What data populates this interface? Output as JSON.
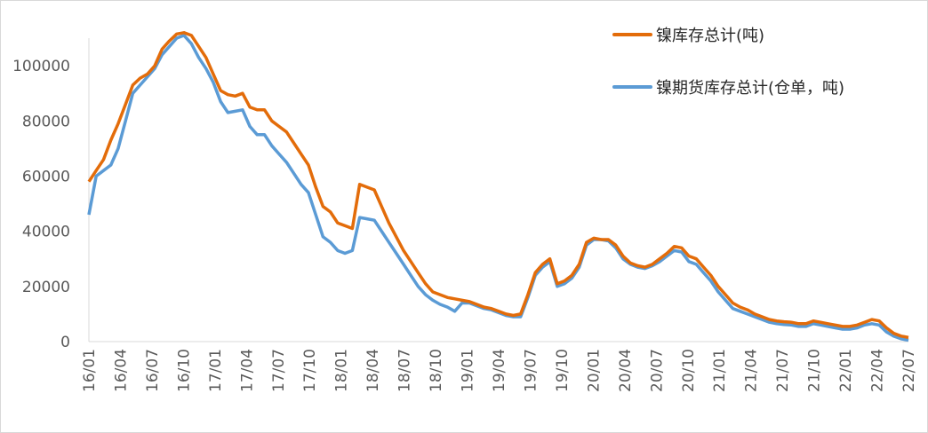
{
  "chart_data": {
    "type": "line",
    "title": "",
    "xlabel": "",
    "ylabel": "",
    "ylim": [
      0,
      110000
    ],
    "yticks": [
      0,
      20000,
      40000,
      60000,
      80000,
      100000
    ],
    "ytick_labels": [
      "0",
      "20000",
      "40000",
      "60000",
      "80000",
      "100000"
    ],
    "xtick_labels": [
      "16/01",
      "16/04",
      "16/07",
      "16/10",
      "17/01",
      "17/04",
      "17/07",
      "17/10",
      "18/01",
      "18/04",
      "18/07",
      "18/10",
      "19/01",
      "19/04",
      "19/07",
      "19/10",
      "20/01",
      "20/04",
      "20/07",
      "20/10",
      "21/01",
      "21/04",
      "21/07",
      "21/10",
      "22/01",
      "22/04",
      "22/07"
    ],
    "grid": false,
    "legend_position": "top-right",
    "series": [
      {
        "name": "镍库存总计(吨)",
        "color": "#E36C0A",
        "points": [
          [
            0,
            58000
          ],
          [
            1,
            62000
          ],
          [
            2,
            66000
          ],
          [
            3,
            73000
          ],
          [
            4,
            79000
          ],
          [
            5,
            86000
          ],
          [
            6,
            93000
          ],
          [
            7,
            95500
          ],
          [
            8,
            97000
          ],
          [
            9,
            100000
          ],
          [
            10,
            106000
          ],
          [
            11,
            109000
          ],
          [
            12,
            111500
          ],
          [
            13,
            112000
          ],
          [
            14,
            111000
          ],
          [
            15,
            107000
          ],
          [
            16,
            103000
          ],
          [
            17,
            97000
          ],
          [
            18,
            91000
          ],
          [
            19,
            89500
          ],
          [
            20,
            89000
          ],
          [
            21,
            90000
          ],
          [
            22,
            85000
          ],
          [
            23,
            84000
          ],
          [
            24,
            84000
          ],
          [
            25,
            80000
          ],
          [
            26,
            78000
          ],
          [
            27,
            76000
          ],
          [
            28,
            72000
          ],
          [
            29,
            68000
          ],
          [
            30,
            64000
          ],
          [
            31,
            56000
          ],
          [
            32,
            49000
          ],
          [
            33,
            47000
          ],
          [
            34,
            43000
          ],
          [
            35,
            42000
          ],
          [
            36,
            41000
          ],
          [
            37,
            57000
          ],
          [
            38,
            56000
          ],
          [
            39,
            55000
          ],
          [
            40,
            49000
          ],
          [
            41,
            43000
          ],
          [
            42,
            38000
          ],
          [
            43,
            33000
          ],
          [
            44,
            29000
          ],
          [
            45,
            25000
          ],
          [
            46,
            21000
          ],
          [
            47,
            18000
          ],
          [
            48,
            17000
          ],
          [
            49,
            16000
          ],
          [
            50,
            15500
          ],
          [
            51,
            15000
          ],
          [
            52,
            14500
          ],
          [
            53,
            13500
          ],
          [
            54,
            12500
          ],
          [
            55,
            12000
          ],
          [
            56,
            11000
          ],
          [
            57,
            10000
          ],
          [
            58,
            9500
          ],
          [
            59,
            10000
          ],
          [
            60,
            17000
          ],
          [
            61,
            25000
          ],
          [
            62,
            28000
          ],
          [
            63,
            30000
          ],
          [
            64,
            21000
          ],
          [
            65,
            22000
          ],
          [
            66,
            24000
          ],
          [
            67,
            28000
          ],
          [
            68,
            36000
          ],
          [
            69,
            37500
          ],
          [
            70,
            37000
          ],
          [
            71,
            37000
          ],
          [
            72,
            35000
          ],
          [
            73,
            31000
          ],
          [
            74,
            28500
          ],
          [
            75,
            27500
          ],
          [
            76,
            27000
          ],
          [
            77,
            28000
          ],
          [
            78,
            30000
          ],
          [
            79,
            32000
          ],
          [
            80,
            34500
          ],
          [
            81,
            34000
          ],
          [
            82,
            31000
          ],
          [
            83,
            30000
          ],
          [
            84,
            27000
          ],
          [
            85,
            24000
          ],
          [
            86,
            20000
          ],
          [
            87,
            17000
          ],
          [
            88,
            14000
          ],
          [
            89,
            12500
          ],
          [
            90,
            11500
          ],
          [
            91,
            10000
          ],
          [
            92,
            9000
          ],
          [
            93,
            8000
          ],
          [
            94,
            7500
          ],
          [
            95,
            7200
          ],
          [
            96,
            7000
          ],
          [
            97,
            6500
          ],
          [
            98,
            6500
          ],
          [
            99,
            7500
          ],
          [
            100,
            7000
          ],
          [
            101,
            6500
          ],
          [
            102,
            6000
          ],
          [
            103,
            5500
          ],
          [
            104,
            5500
          ],
          [
            105,
            6000
          ],
          [
            106,
            7000
          ],
          [
            107,
            8000
          ],
          [
            108,
            7500
          ],
          [
            109,
            5000
          ],
          [
            110,
            3000
          ],
          [
            111,
            2000
          ],
          [
            112,
            1500
          ]
        ]
      },
      {
        "name": "镍期货库存总计(仓单，吨)",
        "color": "#5B9BD5",
        "points": [
          [
            0,
            46000
          ],
          [
            1,
            60000
          ],
          [
            2,
            62000
          ],
          [
            3,
            64000
          ],
          [
            4,
            70000
          ],
          [
            5,
            80000
          ],
          [
            6,
            90000
          ],
          [
            7,
            93000
          ],
          [
            8,
            96000
          ],
          [
            9,
            99000
          ],
          [
            10,
            104000
          ],
          [
            11,
            107000
          ],
          [
            12,
            110000
          ],
          [
            13,
            111000
          ],
          [
            14,
            108000
          ],
          [
            15,
            103000
          ],
          [
            16,
            99000
          ],
          [
            17,
            94000
          ],
          [
            18,
            87000
          ],
          [
            19,
            83000
          ],
          [
            20,
            83500
          ],
          [
            21,
            84000
          ],
          [
            22,
            78000
          ],
          [
            23,
            75000
          ],
          [
            24,
            75000
          ],
          [
            25,
            71000
          ],
          [
            26,
            68000
          ],
          [
            27,
            65000
          ],
          [
            28,
            61000
          ],
          [
            29,
            57000
          ],
          [
            30,
            54000
          ],
          [
            31,
            46000
          ],
          [
            32,
            38000
          ],
          [
            33,
            36000
          ],
          [
            34,
            33000
          ],
          [
            35,
            32000
          ],
          [
            36,
            33000
          ],
          [
            37,
            45000
          ],
          [
            38,
            44500
          ],
          [
            39,
            44000
          ],
          [
            40,
            40000
          ],
          [
            41,
            36000
          ],
          [
            42,
            32000
          ],
          [
            43,
            28000
          ],
          [
            44,
            24000
          ],
          [
            45,
            20000
          ],
          [
            46,
            17000
          ],
          [
            47,
            15000
          ],
          [
            48,
            13500
          ],
          [
            49,
            12500
          ],
          [
            50,
            11000
          ],
          [
            51,
            14000
          ],
          [
            52,
            14000
          ],
          [
            53,
            13000
          ],
          [
            54,
            12000
          ],
          [
            55,
            11500
          ],
          [
            56,
            10500
          ],
          [
            57,
            9500
          ],
          [
            58,
            9000
          ],
          [
            59,
            9000
          ],
          [
            60,
            16000
          ],
          [
            61,
            24000
          ],
          [
            62,
            27000
          ],
          [
            63,
            29000
          ],
          [
            64,
            20000
          ],
          [
            65,
            21000
          ],
          [
            66,
            23000
          ],
          [
            67,
            27000
          ],
          [
            68,
            35000
          ],
          [
            69,
            37000
          ],
          [
            70,
            37000
          ],
          [
            71,
            36500
          ],
          [
            72,
            34000
          ],
          [
            73,
            30000
          ],
          [
            74,
            28000
          ],
          [
            75,
            27000
          ],
          [
            76,
            26500
          ],
          [
            77,
            27500
          ],
          [
            78,
            29000
          ],
          [
            79,
            31000
          ],
          [
            80,
            33000
          ],
          [
            81,
            32500
          ],
          [
            82,
            29000
          ],
          [
            83,
            28000
          ],
          [
            84,
            25000
          ],
          [
            85,
            22000
          ],
          [
            86,
            18000
          ],
          [
            87,
            15000
          ],
          [
            88,
            12000
          ],
          [
            89,
            11000
          ],
          [
            90,
            10000
          ],
          [
            91,
            9000
          ],
          [
            92,
            8000
          ],
          [
            93,
            7000
          ],
          [
            94,
            6500
          ],
          [
            95,
            6200
          ],
          [
            96,
            6000
          ],
          [
            97,
            5500
          ],
          [
            98,
            5500
          ],
          [
            99,
            6500
          ],
          [
            100,
            6000
          ],
          [
            101,
            5500
          ],
          [
            102,
            5000
          ],
          [
            103,
            4500
          ],
          [
            104,
            4500
          ],
          [
            105,
            5000
          ],
          [
            106,
            6000
          ],
          [
            107,
            6500
          ],
          [
            108,
            6000
          ],
          [
            109,
            3500
          ],
          [
            110,
            2000
          ],
          [
            111,
            1000
          ],
          [
            112,
            500
          ]
        ]
      }
    ]
  }
}
